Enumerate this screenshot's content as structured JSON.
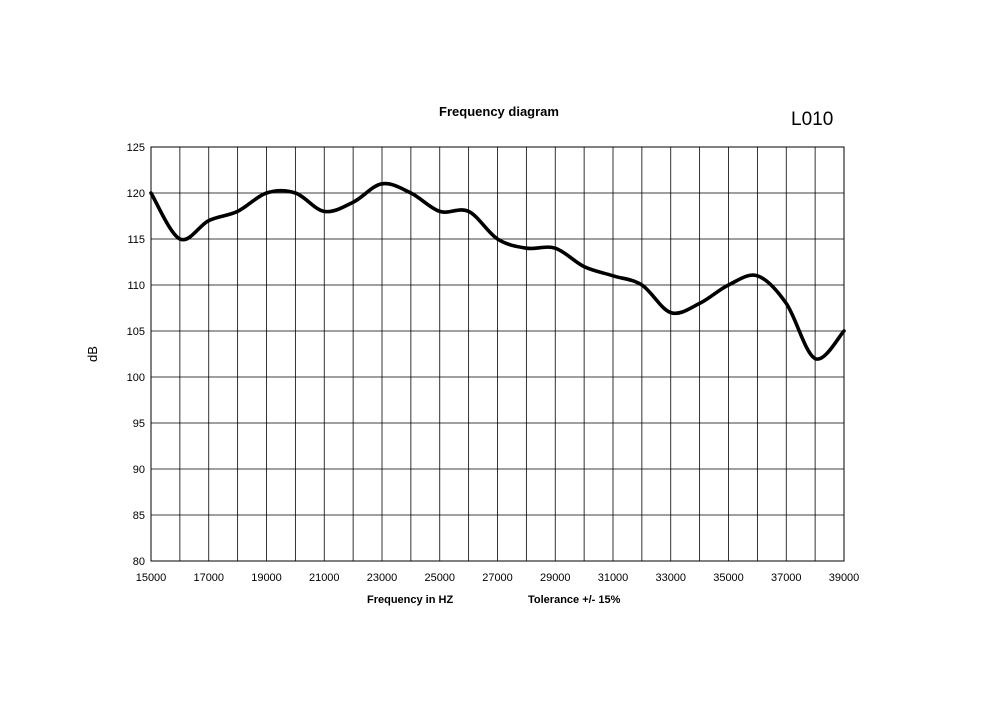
{
  "chart_data": {
    "type": "line",
    "title": "Frequency diagram",
    "code_label": "L010",
    "xlabel": "Frequency in  HZ",
    "note": "Tolerance +/- 15%",
    "ylabel": "dB",
    "xlim": [
      15000,
      39000
    ],
    "ylim": [
      80,
      125
    ],
    "xticks": [
      15000,
      17000,
      19000,
      21000,
      23000,
      25000,
      27000,
      29000,
      31000,
      33000,
      35000,
      37000,
      39000
    ],
    "xtick_labels": [
      "15000",
      "17000",
      "19000",
      "21000",
      "23000",
      "25000",
      "27000",
      "29000",
      "31000",
      "33000",
      "35000",
      "37000",
      "39000"
    ],
    "yticks": [
      80,
      85,
      90,
      95,
      100,
      105,
      110,
      115,
      120,
      125
    ],
    "ytick_labels": [
      "80",
      "85",
      "90",
      "95",
      "100",
      "105",
      "110",
      "115",
      "120",
      "125"
    ],
    "x_gridlines_every": 1000,
    "grid": true,
    "line_color": "#000000",
    "series": [
      {
        "x": [
          15000,
          16000,
          17000,
          18000,
          19000,
          20000,
          21000,
          22000,
          23000,
          24000,
          25000,
          26000,
          27000,
          28000,
          29000,
          30000,
          31000,
          32000,
          33000,
          34000,
          35000,
          36000,
          37000,
          38000,
          39000
        ],
        "values": [
          120,
          115,
          117,
          118,
          120,
          120,
          118,
          119,
          121,
          120,
          118,
          118,
          115,
          114,
          114,
          112,
          111,
          110,
          107,
          108,
          110,
          111,
          108,
          102,
          105
        ]
      }
    ]
  }
}
